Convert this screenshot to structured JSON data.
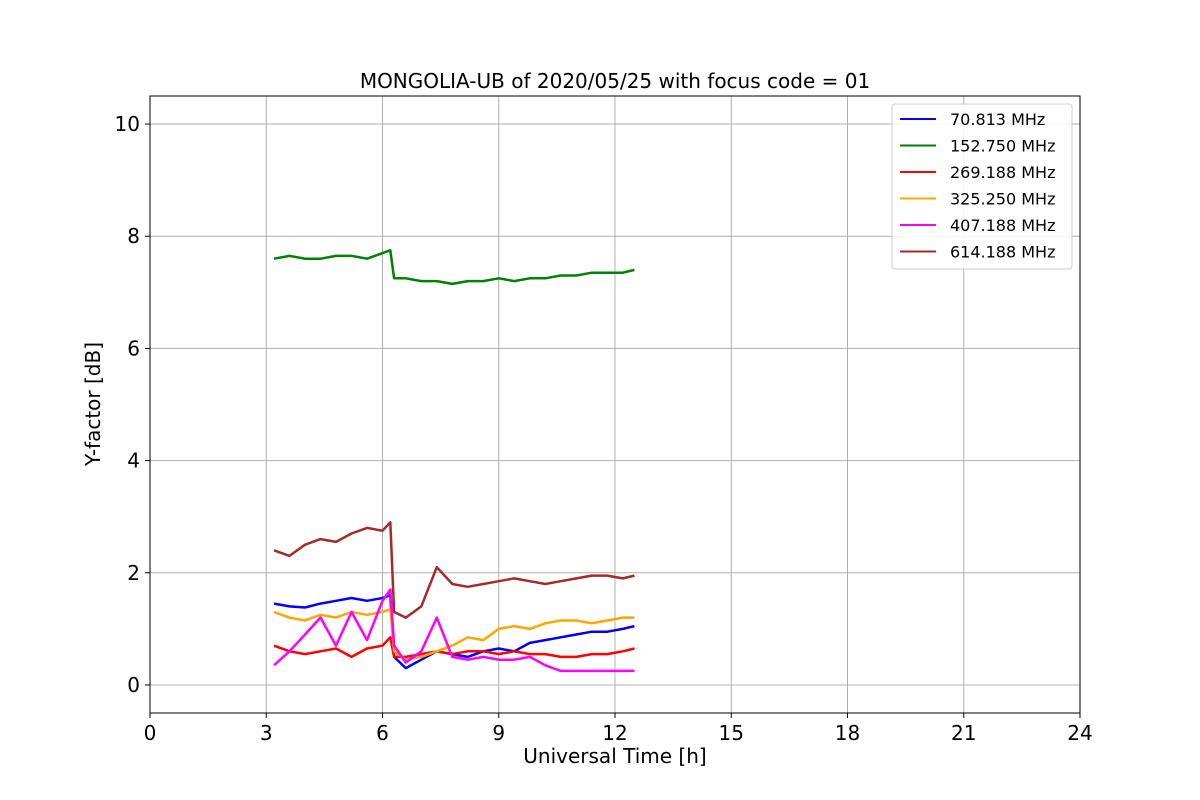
{
  "chart_data": {
    "type": "line",
    "title": "MONGOLIA-UB of 2020/05/25 with focus code = 01",
    "xlabel": "Universal Time [h]",
    "ylabel": "Y-factor [dB]",
    "xlim": [
      0,
      24
    ],
    "ylim": [
      -0.5,
      10.5
    ],
    "xticks": [
      0,
      3,
      6,
      9,
      12,
      15,
      18,
      21,
      24
    ],
    "yticks": [
      0,
      2,
      4,
      6,
      8,
      10
    ],
    "xtick_labels": [
      "0",
      "3",
      "6",
      "9",
      "12",
      "15",
      "18",
      "21",
      "24"
    ],
    "ytick_labels": [
      "0",
      "2",
      "4",
      "6",
      "8",
      "10"
    ],
    "grid": true,
    "legend_position": "top-right",
    "series": [
      {
        "name": " 70.813 MHz",
        "color": "#0000ff",
        "x": [
          3.2,
          3.6,
          4.0,
          4.4,
          4.8,
          5.2,
          5.6,
          6.0,
          6.2,
          6.3,
          6.6,
          7.0,
          7.4,
          7.8,
          8.2,
          8.6,
          9.0,
          9.4,
          9.8,
          10.2,
          10.6,
          11.0,
          11.4,
          11.8,
          12.2,
          12.5
        ],
        "y": [
          1.45,
          1.4,
          1.38,
          1.45,
          1.5,
          1.55,
          1.5,
          1.55,
          1.6,
          0.5,
          0.3,
          0.45,
          0.6,
          0.55,
          0.5,
          0.6,
          0.65,
          0.6,
          0.75,
          0.8,
          0.85,
          0.9,
          0.95,
          0.95,
          1.0,
          1.05
        ]
      },
      {
        "name": "152.750 MHz",
        "color": "#008000",
        "x": [
          3.2,
          3.6,
          4.0,
          4.4,
          4.8,
          5.2,
          5.6,
          6.0,
          6.2,
          6.3,
          6.6,
          7.0,
          7.4,
          7.8,
          8.2,
          8.6,
          9.0,
          9.4,
          9.8,
          10.2,
          10.6,
          11.0,
          11.4,
          11.8,
          12.2,
          12.5
        ],
        "y": [
          7.6,
          7.65,
          7.6,
          7.6,
          7.65,
          7.65,
          7.6,
          7.7,
          7.75,
          7.25,
          7.25,
          7.2,
          7.2,
          7.15,
          7.2,
          7.2,
          7.25,
          7.2,
          7.25,
          7.25,
          7.3,
          7.3,
          7.35,
          7.35,
          7.35,
          7.4
        ]
      },
      {
        "name": "269.188 MHz",
        "color": "#ff0000",
        "x": [
          3.2,
          3.6,
          4.0,
          4.4,
          4.8,
          5.2,
          5.6,
          6.0,
          6.2,
          6.3,
          6.6,
          7.0,
          7.4,
          7.8,
          8.2,
          8.6,
          9.0,
          9.4,
          9.8,
          10.2,
          10.6,
          11.0,
          11.4,
          11.8,
          12.2,
          12.5
        ],
        "y": [
          0.7,
          0.6,
          0.55,
          0.6,
          0.65,
          0.5,
          0.65,
          0.7,
          0.85,
          0.5,
          0.5,
          0.55,
          0.6,
          0.55,
          0.6,
          0.6,
          0.55,
          0.6,
          0.55,
          0.55,
          0.5,
          0.5,
          0.55,
          0.55,
          0.6,
          0.65
        ]
      },
      {
        "name": "325.250 MHz",
        "color": "#ffa500",
        "x": [
          3.2,
          3.6,
          4.0,
          4.4,
          4.8,
          5.2,
          5.6,
          6.0,
          6.2,
          6.3,
          6.6,
          7.0,
          7.4,
          7.8,
          8.2,
          8.6,
          9.0,
          9.4,
          9.8,
          10.2,
          10.6,
          11.0,
          11.4,
          11.8,
          12.2,
          12.5
        ],
        "y": [
          1.3,
          1.2,
          1.15,
          1.25,
          1.2,
          1.3,
          1.25,
          1.3,
          1.35,
          0.6,
          0.45,
          0.5,
          0.6,
          0.7,
          0.85,
          0.8,
          1.0,
          1.05,
          1.0,
          1.1,
          1.15,
          1.15,
          1.1,
          1.15,
          1.2,
          1.2
        ]
      },
      {
        "name": "407.188 MHz",
        "color": "#ff00ff",
        "x": [
          3.2,
          3.6,
          4.0,
          4.4,
          4.8,
          5.2,
          5.6,
          6.0,
          6.2,
          6.3,
          6.6,
          7.0,
          7.4,
          7.8,
          8.2,
          8.6,
          9.0,
          9.4,
          9.8,
          10.2,
          10.6,
          11.0,
          11.4,
          11.8,
          12.2,
          12.5
        ],
        "y": [
          0.35,
          0.6,
          0.9,
          1.2,
          0.7,
          1.3,
          0.8,
          1.5,
          1.7,
          0.7,
          0.4,
          0.6,
          1.2,
          0.5,
          0.45,
          0.5,
          0.45,
          0.45,
          0.5,
          0.35,
          0.25,
          0.25,
          0.25,
          0.25,
          0.25,
          0.25
        ]
      },
      {
        "name": "614.188 MHz",
        "color": "#a52a2a",
        "x": [
          3.2,
          3.6,
          4.0,
          4.4,
          4.8,
          5.2,
          5.6,
          6.0,
          6.2,
          6.3,
          6.6,
          7.0,
          7.4,
          7.8,
          8.2,
          8.6,
          9.0,
          9.4,
          9.8,
          10.2,
          10.6,
          11.0,
          11.4,
          11.8,
          12.2,
          12.5
        ],
        "y": [
          2.4,
          2.3,
          2.5,
          2.6,
          2.55,
          2.7,
          2.8,
          2.75,
          2.9,
          1.3,
          1.2,
          1.4,
          2.1,
          1.8,
          1.75,
          1.8,
          1.85,
          1.9,
          1.85,
          1.8,
          1.85,
          1.9,
          1.95,
          1.95,
          1.9,
          1.95
        ]
      }
    ]
  }
}
